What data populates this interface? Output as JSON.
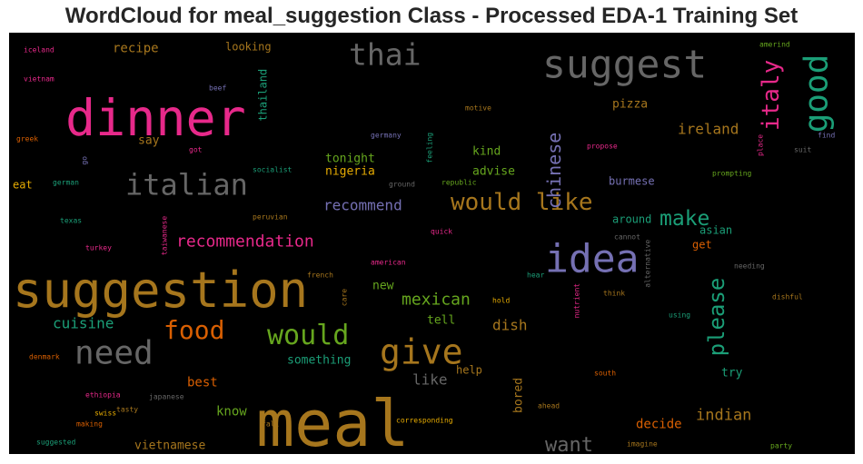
{
  "title": "WordCloud for meal_suggestion Class - Processed EDA-1 Training Set",
  "chart_data": {
    "type": "wordcloud",
    "background": "#000000",
    "palette": "Dark2",
    "words": [
      {
        "text": "meal",
        "color": "#a6761d",
        "weight": 70
      },
      {
        "text": "suggestion",
        "color": "#a6761d",
        "weight": 54
      },
      {
        "text": "dinner",
        "color": "#e7298a",
        "weight": 55
      },
      {
        "text": "suggest",
        "color": "#666666",
        "weight": 43
      },
      {
        "text": "idea",
        "color": "#7570b3",
        "weight": 43
      },
      {
        "text": "give",
        "color": "#a6761d",
        "weight": 38
      },
      {
        "text": "need",
        "color": "#666666",
        "weight": 36
      },
      {
        "text": "italian",
        "color": "#666666",
        "weight": 32
      },
      {
        "text": "good",
        "color": "#1b9e77",
        "weight": 36
      },
      {
        "text": "thai",
        "color": "#666666",
        "weight": 33
      },
      {
        "text": "would like",
        "color": "#a6761d",
        "weight": 26
      },
      {
        "text": "food",
        "color": "#d95f02",
        "weight": 28
      },
      {
        "text": "would",
        "color": "#66a61e",
        "weight": 30
      },
      {
        "text": "italy",
        "color": "#e7298a",
        "weight": 26
      },
      {
        "text": "please",
        "color": "#1b9e77",
        "weight": 24
      },
      {
        "text": "make",
        "color": "#1b9e77",
        "weight": 23
      },
      {
        "text": "chinese",
        "color": "#7570b3",
        "weight": 20
      },
      {
        "text": "recommendation",
        "color": "#e7298a",
        "weight": 18
      },
      {
        "text": "want",
        "color": "#666666",
        "weight": 22
      },
      {
        "text": "mexican",
        "color": "#66a61e",
        "weight": 18
      },
      {
        "text": "ireland",
        "color": "#a6761d",
        "weight": 16
      },
      {
        "text": "recommend",
        "color": "#7570b3",
        "weight": 16
      },
      {
        "text": "cuisine",
        "color": "#1b9e77",
        "weight": 16
      },
      {
        "text": "indian",
        "color": "#a6761d",
        "weight": 17
      },
      {
        "text": "dish",
        "color": "#a6761d",
        "weight": 16
      },
      {
        "text": "recipe",
        "color": "#a6761d",
        "weight": 14
      },
      {
        "text": "like",
        "color": "#666666",
        "weight": 16
      },
      {
        "text": "nigeria",
        "color": "#e6ab02",
        "weight": 13
      },
      {
        "text": "thailand",
        "color": "#1b9e77",
        "weight": 12
      },
      {
        "text": "looking",
        "color": "#a6761d",
        "weight": 12
      },
      {
        "text": "say",
        "color": "#a6761d",
        "weight": 13
      },
      {
        "text": "tonight",
        "color": "#66a61e",
        "weight": 13
      },
      {
        "text": "pizza",
        "color": "#a6761d",
        "weight": 13
      },
      {
        "text": "kind",
        "color": "#66a61e",
        "weight": 13
      },
      {
        "text": "advise",
        "color": "#66a61e",
        "weight": 13
      },
      {
        "text": "burmese",
        "color": "#7570b3",
        "weight": 12
      },
      {
        "text": "around",
        "color": "#1b9e77",
        "weight": 12
      },
      {
        "text": "get",
        "color": "#d95f02",
        "weight": 12
      },
      {
        "text": "asian",
        "color": "#1b9e77",
        "weight": 12
      },
      {
        "text": "best",
        "color": "#d95f02",
        "weight": 14
      },
      {
        "text": "new",
        "color": "#66a61e",
        "weight": 13
      },
      {
        "text": "tell",
        "color": "#66a61e",
        "weight": 13
      },
      {
        "text": "something",
        "color": "#1b9e77",
        "weight": 13
      },
      {
        "text": "know",
        "color": "#66a61e",
        "weight": 14
      },
      {
        "text": "help",
        "color": "#a6761d",
        "weight": 12
      },
      {
        "text": "try",
        "color": "#1b9e77",
        "weight": 13
      },
      {
        "text": "decide",
        "color": "#d95f02",
        "weight": 14
      },
      {
        "text": "bored",
        "color": "#a6761d",
        "weight": 13
      },
      {
        "text": "vietnamese",
        "color": "#a6761d",
        "weight": 13
      },
      {
        "text": "eat",
        "color": "#e6ab02",
        "weight": 12
      },
      {
        "text": "beef",
        "color": "#7570b3",
        "weight": 8
      },
      {
        "text": "iceland",
        "color": "#e7298a",
        "weight": 8
      },
      {
        "text": "vietnam",
        "color": "#e7298a",
        "weight": 8
      },
      {
        "text": "greek",
        "color": "#d95f02",
        "weight": 8
      },
      {
        "text": "got",
        "color": "#e7298a",
        "weight": 8
      },
      {
        "text": "go",
        "color": "#7570b3",
        "weight": 8
      },
      {
        "text": "motive",
        "color": "#a6761d",
        "weight": 8
      },
      {
        "text": "germany",
        "color": "#7570b3",
        "weight": 8
      },
      {
        "text": "feeling",
        "color": "#1b9e77",
        "weight": 8
      },
      {
        "text": "socialist",
        "color": "#1b9e77",
        "weight": 8
      },
      {
        "text": "german",
        "color": "#1b9e77",
        "weight": 8
      },
      {
        "text": "ground",
        "color": "#666666",
        "weight": 8
      },
      {
        "text": "republic",
        "color": "#66a61e",
        "weight": 8
      },
      {
        "text": "propose",
        "color": "#e7298a",
        "weight": 8
      },
      {
        "text": "prompting",
        "color": "#66a61e",
        "weight": 8
      },
      {
        "text": "place",
        "color": "#e7298a",
        "weight": 8
      },
      {
        "text": "suit",
        "color": "#666666",
        "weight": 8
      },
      {
        "text": "find",
        "color": "#7570b3",
        "weight": 8
      },
      {
        "text": "amerind",
        "color": "#66a61e",
        "weight": 8
      },
      {
        "text": "texas",
        "color": "#1b9e77",
        "weight": 8
      },
      {
        "text": "peruvian",
        "color": "#a6761d",
        "weight": 8
      },
      {
        "text": "taiwanese",
        "color": "#e7298a",
        "weight": 8
      },
      {
        "text": "quick",
        "color": "#e7298a",
        "weight": 8
      },
      {
        "text": "cannot",
        "color": "#666666",
        "weight": 8
      },
      {
        "text": "turkey",
        "color": "#e7298a",
        "weight": 8
      },
      {
        "text": "american",
        "color": "#e7298a",
        "weight": 8
      },
      {
        "text": "french",
        "color": "#a6761d",
        "weight": 8
      },
      {
        "text": "hear",
        "color": "#1b9e77",
        "weight": 8
      },
      {
        "text": "alternative",
        "color": "#666666",
        "weight": 8
      },
      {
        "text": "needing",
        "color": "#666666",
        "weight": 8
      },
      {
        "text": "care",
        "color": "#a6761d",
        "weight": 8
      },
      {
        "text": "hold",
        "color": "#e6ab02",
        "weight": 8
      },
      {
        "text": "nutrient",
        "color": "#e7298a",
        "weight": 8
      },
      {
        "text": "think",
        "color": "#a6761d",
        "weight": 8
      },
      {
        "text": "dishful",
        "color": "#a6761d",
        "weight": 8
      },
      {
        "text": "using",
        "color": "#1b9e77",
        "weight": 8
      },
      {
        "text": "denmark",
        "color": "#d95f02",
        "weight": 8
      },
      {
        "text": "south",
        "color": "#d95f02",
        "weight": 8
      },
      {
        "text": "japanese",
        "color": "#666666",
        "weight": 8
      },
      {
        "text": "ethiopia",
        "color": "#e7298a",
        "weight": 8
      },
      {
        "text": "swiss",
        "color": "#e6ab02",
        "weight": 8
      },
      {
        "text": "tasty",
        "color": "#a6761d",
        "weight": 8
      },
      {
        "text": "making",
        "color": "#d95f02",
        "weight": 8
      },
      {
        "text": "fall",
        "color": "#a6761d",
        "weight": 8
      },
      {
        "text": "corresponding",
        "color": "#e6ab02",
        "weight": 8
      },
      {
        "text": "ahead",
        "color": "#a6761d",
        "weight": 8
      },
      {
        "text": "imagine",
        "color": "#a6761d",
        "weight": 8
      },
      {
        "text": "party",
        "color": "#66a61e",
        "weight": 8
      },
      {
        "text": "suggested",
        "color": "#1b9e77",
        "weight": 8
      }
    ]
  }
}
